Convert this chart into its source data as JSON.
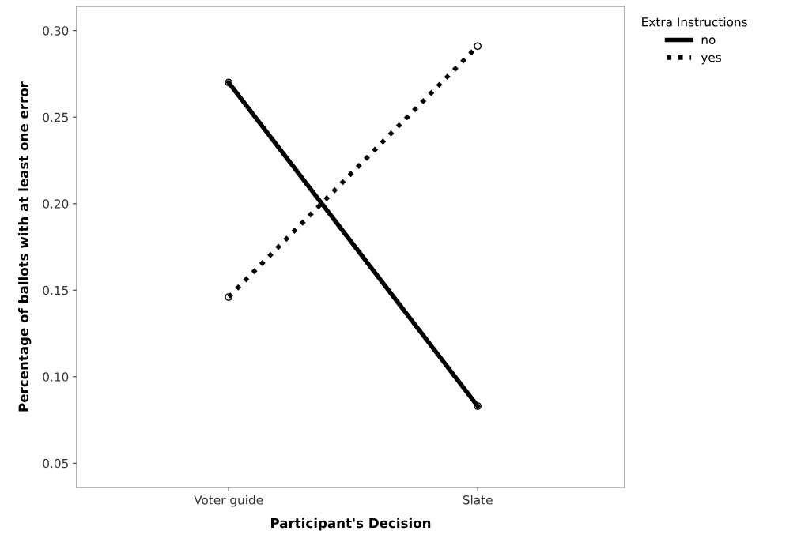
{
  "chart_data": {
    "type": "line",
    "xlabel": "Participant's Decision",
    "ylabel": "Percentage of ballots with at least one error",
    "legend_title": "Extra Instructions",
    "categories": [
      "Voter guide",
      "Slate"
    ],
    "series": [
      {
        "name": "no",
        "color": "#000000",
        "values": [
          0.27,
          0.083
        ],
        "line_style": "solid"
      },
      {
        "name": "yes",
        "color": "#000000",
        "values": [
          0.146,
          0.291
        ],
        "line_style": "dotted"
      }
    ],
    "ylim": [
      0.036,
      0.314
    ],
    "yticks": [
      {
        "value": 0.05,
        "label": "0.05"
      },
      {
        "value": 0.1,
        "label": "0.10"
      },
      {
        "value": 0.15,
        "label": "0.15"
      },
      {
        "value": 0.2,
        "label": "0.20"
      },
      {
        "value": 0.25,
        "label": "0.25"
      },
      {
        "value": 0.3,
        "label": "0.30"
      }
    ],
    "marker": "circle",
    "grid": false,
    "legend": "top right"
  }
}
